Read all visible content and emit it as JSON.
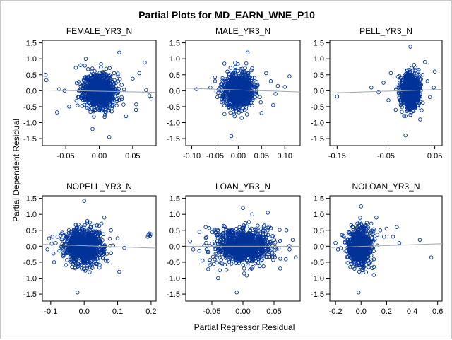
{
  "chart_data": {
    "type": "scatter",
    "title": "Partial Plots for MD_EARN_WNE_P10",
    "xlabel": "Partial Regressor Residual",
    "ylabel": "Partial Dependent Residual",
    "marker_color": "#003399",
    "fit_line_color": "#a0a8b0",
    "y_ticks": [
      "1.5",
      "1.0",
      "0.5",
      "0.0",
      "-0.5",
      "-1.0",
      "-1.5"
    ],
    "y_values": [
      1.5,
      1.0,
      0.5,
      0.0,
      -0.5,
      -1.0,
      -1.5
    ],
    "ylim": [
      -1.72,
      1.58
    ],
    "panels": [
      {
        "title": "FEMALE_YR3_N",
        "xlim": [
          -0.085,
          0.085
        ],
        "xticks": [
          -0.05,
          0.0,
          0.05
        ],
        "xtick_labels": [
          "-0.05",
          "0.00",
          "0.05"
        ],
        "fit_line": [
          [
            -0.085,
            0.02
          ],
          [
            0.085,
            -0.05
          ]
        ],
        "cloud": {
          "cx": 0.0,
          "sx": 0.012,
          "sy": 0.27,
          "n": 950,
          "seed": 11
        },
        "outliers": [
          [
            -0.08,
            0.5
          ],
          [
            -0.079,
            0.33
          ],
          [
            -0.06,
            0.05
          ],
          [
            -0.052,
            0.0
          ],
          [
            -0.063,
            -0.68
          ],
          [
            -0.045,
            -0.5
          ],
          [
            -0.035,
            0.72
          ],
          [
            -0.028,
            0.8
          ],
          [
            -0.02,
            1.0
          ],
          [
            0.015,
            -1.45
          ],
          [
            0.05,
            0.38
          ],
          [
            0.06,
            0.55
          ],
          [
            0.068,
            0.88
          ],
          [
            0.075,
            -0.15
          ],
          [
            0.078,
            -0.25
          ],
          [
            0.07,
            0.02
          ],
          [
            0.055,
            -0.6
          ],
          [
            0.04,
            -0.8
          ],
          [
            0.03,
            1.2
          ],
          [
            -0.01,
            -1.2
          ]
        ]
      },
      {
        "title": "MALE_YR3_N",
        "xlim": [
          -0.113,
          0.133
        ],
        "xticks": [
          -0.1,
          -0.05,
          0.0,
          0.05,
          0.1
        ],
        "xtick_labels": [
          "-0.10",
          "-0.05",
          "0.00",
          "0.05",
          "0.10"
        ],
        "fit_line": [
          [
            -0.113,
            0.08
          ],
          [
            0.133,
            -0.04
          ]
        ],
        "cloud": {
          "cx": 0.0,
          "sx": 0.016,
          "sy": 0.27,
          "n": 950,
          "seed": 23
        },
        "outliers": [
          [
            -0.09,
            0.05
          ],
          [
            -0.05,
            0.3
          ],
          [
            -0.045,
            -0.2
          ],
          [
            -0.03,
            0.85
          ],
          [
            0.02,
            1.2
          ],
          [
            -0.015,
            -1.42
          ],
          [
            0.06,
            0.55
          ],
          [
            0.07,
            0.3
          ],
          [
            0.08,
            -0.1
          ],
          [
            0.085,
            0.15
          ],
          [
            0.1,
            0.12
          ],
          [
            0.11,
            0.45
          ],
          [
            0.075,
            -0.45
          ],
          [
            0.05,
            -0.7
          ],
          [
            -0.06,
            0.1
          ]
        ]
      },
      {
        "title": "PELL_YR3_N",
        "xlim": [
          -0.165,
          0.065
        ],
        "xticks": [
          -0.15,
          -0.05,
          0.05
        ],
        "xtick_labels": [
          "-0.15",
          "-0.05",
          "0.05"
        ],
        "fit_line": [
          [
            -0.165,
            -0.07
          ],
          [
            0.065,
            0.04
          ]
        ],
        "cloud": {
          "cx": 0.0,
          "sx": 0.009,
          "sy": 0.27,
          "n": 900,
          "seed": 37
        },
        "outliers": [
          [
            -0.15,
            -0.18
          ],
          [
            -0.08,
            0.1
          ],
          [
            -0.065,
            -0.05
          ],
          [
            -0.055,
            0.25
          ],
          [
            -0.045,
            -0.3
          ],
          [
            -0.04,
            0.55
          ],
          [
            -0.03,
            -0.6
          ],
          [
            0.025,
            0.5
          ],
          [
            0.035,
            0.3
          ],
          [
            0.04,
            -0.2
          ],
          [
            0.048,
            0.1
          ],
          [
            0.05,
            0.6
          ],
          [
            0.02,
            -0.9
          ],
          [
            0.0,
            1.38
          ],
          [
            -0.01,
            -1.4
          ],
          [
            0.03,
            0.9
          ]
        ]
      },
      {
        "title": "NOPELL_YR3_N",
        "xlim": [
          -0.125,
          0.215
        ],
        "xticks": [
          -0.1,
          0.0,
          0.1,
          0.2
        ],
        "xtick_labels": [
          "-0.1",
          "0.0",
          "0.1",
          "0.2"
        ],
        "fit_line": [
          [
            -0.125,
            0.06
          ],
          [
            0.215,
            -0.06
          ]
        ],
        "cloud": {
          "cx": 0.0,
          "sx": 0.028,
          "sy": 0.27,
          "n": 1100,
          "seed": 53
        },
        "outliers": [
          [
            -0.11,
            -0.1
          ],
          [
            -0.105,
            0.25
          ],
          [
            -0.095,
            0.3
          ],
          [
            -0.09,
            -0.5
          ],
          [
            -0.085,
            0.1
          ],
          [
            0.1,
            0.25
          ],
          [
            0.12,
            -0.05
          ],
          [
            0.19,
            0.3
          ],
          [
            0.192,
            0.35
          ],
          [
            0.195,
            0.4
          ],
          [
            0.197,
            0.33
          ],
          [
            0.2,
            0.38
          ],
          [
            0.105,
            -0.8
          ],
          [
            0.08,
            0.5
          ],
          [
            0.0,
            1.42
          ],
          [
            -0.02,
            -1.45
          ],
          [
            0.06,
            0.9
          ]
        ]
      },
      {
        "title": "LOAN_YR3_N",
        "xlim": [
          -0.092,
          0.092
        ],
        "xticks": [
          -0.05,
          0.0,
          0.05
        ],
        "xtick_labels": [
          "-0.05",
          "0.00",
          "0.05"
        ],
        "fit_line": [
          [
            -0.092,
            0.0
          ],
          [
            0.092,
            0.0
          ]
        ],
        "cloud": {
          "cx": 0.0,
          "sx": 0.022,
          "sy": 0.27,
          "n": 1100,
          "seed": 71
        },
        "outliers": [
          [
            -0.085,
            0.15
          ],
          [
            -0.08,
            -0.1
          ],
          [
            -0.07,
            0.45
          ],
          [
            -0.065,
            -0.45
          ],
          [
            -0.06,
            0.6
          ],
          [
            0.07,
            0.5
          ],
          [
            0.075,
            -0.1
          ],
          [
            0.08,
            0.2
          ],
          [
            0.085,
            -0.35
          ],
          [
            0.06,
            -0.7
          ],
          [
            -0.04,
            -1.0
          ],
          [
            0.04,
            1.05
          ],
          [
            0.0,
            1.2
          ],
          [
            -0.01,
            -1.45
          ],
          [
            0.015,
            1.0
          ]
        ]
      },
      {
        "title": "NOLOAN_YR3_N",
        "xlim": [
          -0.245,
          0.635
        ],
        "xticks": [
          -0.2,
          0.0,
          0.2,
          0.4,
          0.6
        ],
        "xtick_labels": [
          "-0.2",
          "0.0",
          "0.2",
          "0.4",
          "0.6"
        ],
        "fit_line": [
          [
            -0.245,
            -0.04
          ],
          [
            0.635,
            0.08
          ]
        ],
        "cloud": {
          "cx": -0.01,
          "sx": 0.045,
          "sy": 0.27,
          "n": 950,
          "seed": 97
        },
        "outliers": [
          [
            -0.2,
            0.1
          ],
          [
            -0.18,
            -0.1
          ],
          [
            -0.15,
            0.35
          ],
          [
            0.15,
            0.5
          ],
          [
            0.18,
            0.3
          ],
          [
            0.2,
            0.55
          ],
          [
            0.25,
            0.3
          ],
          [
            0.28,
            0.6
          ],
          [
            0.3,
            0.1
          ],
          [
            0.46,
            0.2
          ],
          [
            0.55,
            -0.35
          ],
          [
            0.1,
            -0.9
          ],
          [
            0.0,
            1.25
          ],
          [
            -0.02,
            -1.45
          ],
          [
            0.12,
            0.9
          ]
        ]
      }
    ]
  }
}
